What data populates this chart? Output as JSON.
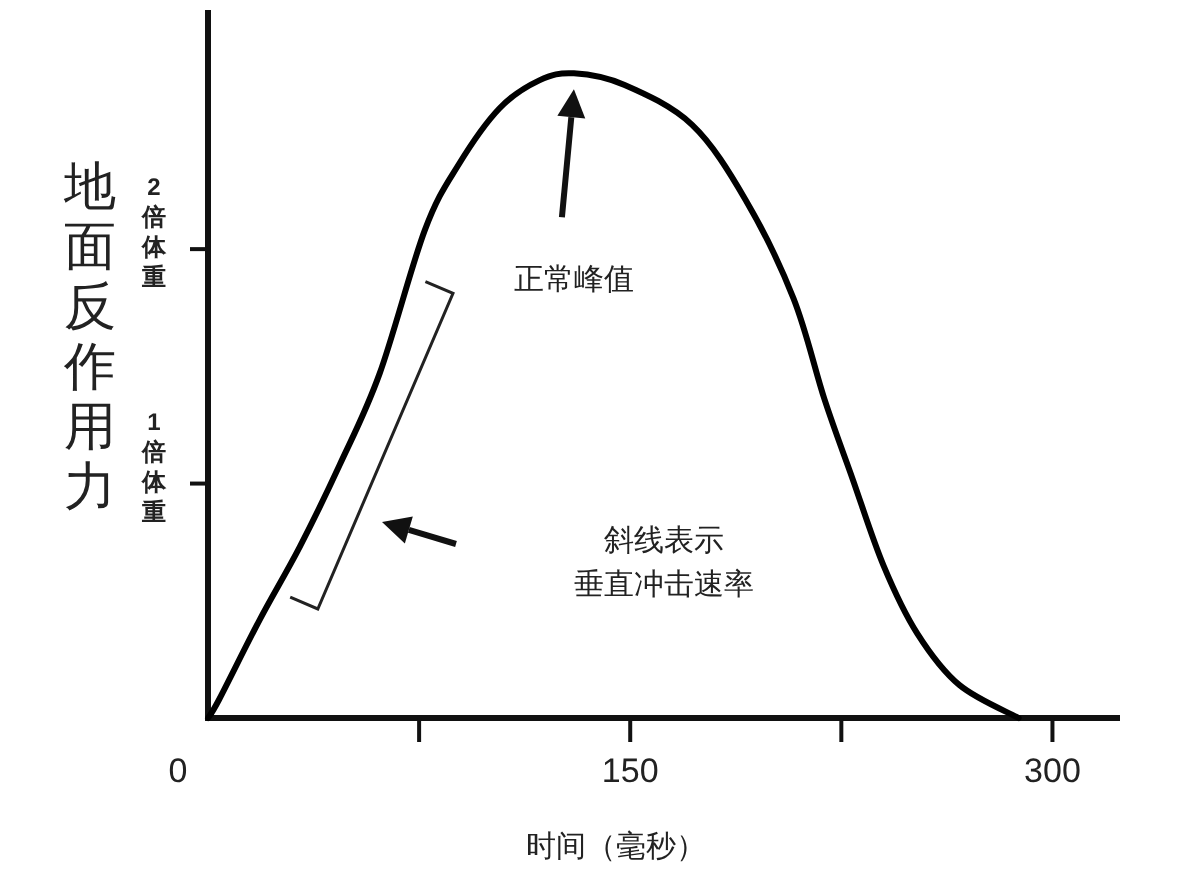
{
  "chart_data": {
    "type": "line",
    "xlabel": "时间（毫秒）",
    "ylabel": "地面反作用力",
    "x": [
      0,
      4,
      18.4,
      32.6,
      46.8,
      61,
      77,
      89,
      103.5,
      117.7,
      130,
      148,
      172,
      191,
      208,
      219,
      229,
      240,
      252,
      267,
      288
    ],
    "series": [
      {
        "color": "#000000",
        "values": [
          0,
          0.08,
          0.42,
          0.73,
          1.08,
          1.47,
          2.08,
          2.36,
          2.6,
          2.72,
          2.75,
          2.7,
          2.53,
          2.21,
          1.79,
          1.36,
          1.02,
          0.65,
          0.36,
          0.14,
          0
        ]
      }
    ],
    "xlim": [
      0,
      324
    ],
    "ylim": [
      0,
      3.02
    ],
    "xticks": [
      0,
      {
        "value": 75,
        "label": null
      },
      150,
      {
        "value": 225,
        "label": null
      },
      300
    ],
    "yticks": [
      {
        "value": 1,
        "label": "1 倍体重"
      },
      {
        "value": 2,
        "label": "2 倍体重"
      }
    ],
    "annotations": [
      "正常峰值",
      "斜线表示",
      "垂直冲击速率"
    ],
    "grid": false,
    "marker": "none",
    "line_style": "solid"
  }
}
